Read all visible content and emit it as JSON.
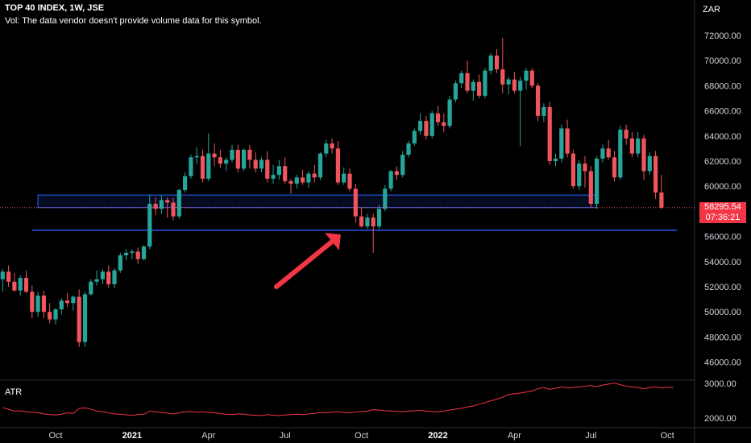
{
  "header": {
    "title": "TOP 40 INDEX, 1W, JSE",
    "vol_note": "Vol: The data vendor doesn't provide volume data for this symbol.",
    "currency": "ZAR",
    "indicator": "ATR"
  },
  "last_price": {
    "price": "58295.54",
    "countdown": "07:36:21"
  },
  "colors": {
    "up": "#26a69a",
    "down": "#f0555d",
    "support": "#2962ff",
    "arrow": "#f23645",
    "atr": "#f23645"
  },
  "chart_data": {
    "type": "candlestick",
    "price_axis": {
      "min": 45000,
      "max": 73000,
      "ticks": [
        "72000.00",
        "70000.00",
        "68000.00",
        "66000.00",
        "64000.00",
        "62000.00",
        "60000.00",
        "58000.00",
        "56000.00",
        "54000.00",
        "52000.00",
        "50000.00",
        "48000.00",
        "46000.00"
      ]
    },
    "atr_axis": {
      "min": 1700,
      "max": 3200,
      "ticks": [
        "3000.00",
        "2000.00"
      ]
    },
    "x_tick_labels": [
      {
        "label": "Oct",
        "bold": false,
        "week": 0
      },
      {
        "label": "2021",
        "bold": true,
        "week": 13
      },
      {
        "label": "Apr",
        "bold": false,
        "week": 26
      },
      {
        "label": "Jul",
        "bold": false,
        "week": 39
      },
      {
        "label": "Oct",
        "bold": false,
        "week": 52
      },
      {
        "label": "2022",
        "bold": true,
        "week": 65
      },
      {
        "label": "Apr",
        "bold": false,
        "week": 78
      },
      {
        "label": "Jul",
        "bold": false,
        "week": 91
      },
      {
        "label": "Oct",
        "bold": false,
        "week": 104
      }
    ],
    "first_week_offset": -9,
    "candles": [
      [
        52600,
        53400,
        51600,
        53200
      ],
      [
        53200,
        53700,
        52000,
        52400
      ],
      [
        52400,
        53100,
        51600,
        51700
      ],
      [
        51700,
        52900,
        51300,
        52700
      ],
      [
        52700,
        53300,
        51500,
        51600
      ],
      [
        51600,
        52100,
        49500,
        50000
      ],
      [
        50000,
        51600,
        49600,
        51300
      ],
      [
        51300,
        51700,
        49500,
        50000
      ],
      [
        50000,
        50700,
        49100,
        49400
      ],
      [
        49400,
        50300,
        49000,
        50200
      ],
      [
        50200,
        51100,
        49800,
        50900
      ],
      [
        50900,
        51500,
        50400,
        50700
      ],
      [
        50700,
        51300,
        50100,
        51200
      ],
      [
        51200,
        51800,
        47200,
        47600
      ],
      [
        47600,
        51600,
        47200,
        51400
      ],
      [
        51400,
        52600,
        51300,
        52400
      ],
      [
        52400,
        53300,
        52100,
        52600
      ],
      [
        52600,
        53400,
        52200,
        53200
      ],
      [
        53200,
        53700,
        51900,
        52200
      ],
      [
        52200,
        53500,
        51900,
        53300
      ],
      [
        53300,
        54700,
        53100,
        54500
      ],
      [
        54500,
        55000,
        54100,
        54700
      ],
      [
        54700,
        55000,
        54200,
        54800
      ],
      [
        54800,
        55100,
        53800,
        54200
      ],
      [
        54200,
        55300,
        54100,
        55200
      ],
      [
        55200,
        59300,
        55000,
        58600
      ],
      [
        58600,
        59100,
        57700,
        58200
      ],
      [
        58200,
        59300,
        57800,
        58900
      ],
      [
        58900,
        59100,
        57500,
        58700
      ],
      [
        58700,
        59100,
        57300,
        57600
      ],
      [
        57600,
        59800,
        57400,
        59700
      ],
      [
        59700,
        61100,
        59500,
        60800
      ],
      [
        60800,
        62500,
        60600,
        62300
      ],
      [
        62300,
        63100,
        61800,
        62400
      ],
      [
        62400,
        62900,
        60300,
        60600
      ],
      [
        60600,
        64200,
        60400,
        62600
      ],
      [
        62600,
        63400,
        61600,
        62300
      ],
      [
        62300,
        62900,
        61500,
        61800
      ],
      [
        61800,
        62300,
        61200,
        62100
      ],
      [
        62100,
        63300,
        61900,
        62900
      ],
      [
        62900,
        63300,
        61100,
        61400
      ],
      [
        61400,
        63000,
        61200,
        62900
      ],
      [
        62900,
        63300,
        61400,
        62100
      ],
      [
        62100,
        62700,
        61100,
        61400
      ],
      [
        61400,
        62300,
        61100,
        62100
      ],
      [
        62100,
        62800,
        60300,
        60600
      ],
      [
        60600,
        61700,
        60200,
        60900
      ],
      [
        60900,
        62100,
        60500,
        61600
      ],
      [
        61600,
        62300,
        60200,
        60400
      ],
      [
        60400,
        60600,
        59400,
        60200
      ],
      [
        60200,
        60900,
        59800,
        60700
      ],
      [
        60700,
        61300,
        60100,
        60300
      ],
      [
        60300,
        61200,
        59900,
        61000
      ],
      [
        61000,
        61700,
        60300,
        60700
      ],
      [
        60700,
        62700,
        60500,
        62600
      ],
      [
        62600,
        63700,
        62300,
        63400
      ],
      [
        63400,
        63800,
        62600,
        63000
      ],
      [
        63000,
        63600,
        60100,
        60300
      ],
      [
        60300,
        61500,
        60100,
        61000
      ],
      [
        61000,
        61400,
        59600,
        59800
      ],
      [
        59800,
        60200,
        57100,
        57600
      ],
      [
        57600,
        58300,
        56700,
        56800
      ],
      [
        56800,
        57800,
        56600,
        57500
      ],
      [
        57500,
        57800,
        54700,
        56800
      ],
      [
        56800,
        58500,
        56600,
        58200
      ],
      [
        58200,
        60100,
        58000,
        59800
      ],
      [
        59800,
        61300,
        59600,
        61200
      ],
      [
        61200,
        61600,
        60500,
        60900
      ],
      [
        60900,
        62800,
        60700,
        62500
      ],
      [
        62500,
        63600,
        62300,
        63400
      ],
      [
        63400,
        64600,
        63200,
        64400
      ],
      [
        64400,
        65800,
        64100,
        65200
      ],
      [
        65200,
        65600,
        63700,
        64000
      ],
      [
        64000,
        66000,
        63800,
        65800
      ],
      [
        65800,
        66400,
        64800,
        65100
      ],
      [
        65100,
        65800,
        64300,
        64800
      ],
      [
        64800,
        67200,
        64600,
        66900
      ],
      [
        66900,
        68400,
        66700,
        68200
      ],
      [
        68200,
        69200,
        67800,
        69000
      ],
      [
        69000,
        70000,
        67400,
        67600
      ],
      [
        67600,
        68500,
        66800,
        68300
      ],
      [
        68300,
        68900,
        67000,
        67200
      ],
      [
        67200,
        69400,
        67000,
        69200
      ],
      [
        69200,
        70600,
        68900,
        70400
      ],
      [
        70400,
        70900,
        69000,
        69300
      ],
      [
        69300,
        71800,
        67400,
        68100
      ],
      [
        68100,
        68700,
        67300,
        68500
      ],
      [
        68500,
        69100,
        67400,
        67600
      ],
      [
        67600,
        68700,
        63200,
        68400
      ],
      [
        68400,
        69400,
        67700,
        69200
      ],
      [
        69200,
        69400,
        67800,
        68000
      ],
      [
        68000,
        68200,
        65200,
        65600
      ],
      [
        65600,
        66600,
        65100,
        66300
      ],
      [
        66300,
        66700,
        61700,
        62000
      ],
      [
        62000,
        62600,
        61600,
        62200
      ],
      [
        62200,
        64900,
        61900,
        64600
      ],
      [
        64600,
        65300,
        62300,
        62600
      ],
      [
        62600,
        62900,
        59800,
        60000
      ],
      [
        60000,
        62100,
        59700,
        61800
      ],
      [
        61800,
        62400,
        59900,
        61200
      ],
      [
        61200,
        61600,
        58300,
        58600
      ],
      [
        58600,
        62400,
        58200,
        62200
      ],
      [
        62200,
        63300,
        61900,
        63000
      ],
      [
        63000,
        63700,
        62100,
        62300
      ],
      [
        62300,
        62800,
        60400,
        60700
      ],
      [
        60700,
        64800,
        60500,
        64500
      ],
      [
        64500,
        64900,
        63300,
        63800
      ],
      [
        63800,
        64300,
        62300,
        62600
      ],
      [
        62600,
        64300,
        62300,
        63800
      ],
      [
        63800,
        64100,
        60500,
        61200
      ],
      [
        61200,
        62700,
        60900,
        62400
      ],
      [
        62400,
        62800,
        59000,
        59500
      ],
      [
        59500,
        60900,
        58200,
        58296
      ]
    ],
    "support_zone": {
      "low": 58300,
      "high": 59300,
      "from_week": -3,
      "to_week": 92
    },
    "support_line": {
      "value": 56500,
      "from_week": -4
    },
    "atr": [
      2300,
      2250,
      2200,
      2210,
      2180,
      2170,
      2150,
      2120,
      2100,
      2090,
      2110,
      2150,
      2130,
      2280,
      2290,
      2260,
      2200,
      2180,
      2150,
      2120,
      2110,
      2090,
      2080,
      2100,
      2110,
      2200,
      2180,
      2160,
      2140,
      2120,
      2150,
      2180,
      2190,
      2170,
      2180,
      2160,
      2150,
      2130,
      2110,
      2100,
      2120,
      2110,
      2090,
      2080,
      2070,
      2100,
      2080,
      2070,
      2090,
      2100,
      2110,
      2100,
      2120,
      2130,
      2160,
      2150,
      2170,
      2180,
      2160,
      2150,
      2170,
      2190,
      2200,
      2240,
      2230,
      2210,
      2200,
      2190,
      2180,
      2200,
      2210,
      2220,
      2200,
      2190,
      2180,
      2200,
      2230,
      2260,
      2280,
      2320,
      2350,
      2400,
      2440,
      2500,
      2540,
      2600,
      2680,
      2700,
      2720,
      2750,
      2780,
      2850,
      2880,
      2830,
      2860,
      2900,
      2870,
      2880,
      2900,
      2920,
      2940,
      2910,
      2950,
      2980,
      3010,
      2960,
      2920,
      2900,
      2880,
      2850,
      2880,
      2900,
      2870,
      2890,
      2880
    ]
  }
}
